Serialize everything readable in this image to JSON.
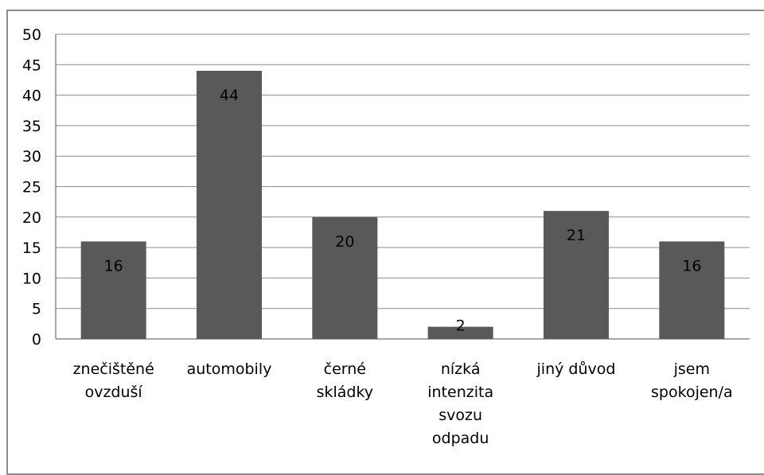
{
  "chart_data": {
    "type": "bar",
    "categories": [
      [
        "znečištěné",
        "ovzduší"
      ],
      [
        "automobily"
      ],
      [
        "černé",
        "skládky"
      ],
      [
        "nízká",
        "intenzita",
        "svozu",
        "odpadu"
      ],
      [
        "jiný důvod"
      ],
      [
        "jsem",
        "spokojen/a"
      ]
    ],
    "values": [
      16,
      44,
      20,
      2,
      21,
      16
    ],
    "ylim": [
      0,
      50
    ],
    "ytick_step": 5,
    "grid": true,
    "legend": "none",
    "bar_color": "#595959",
    "grid_color": "#8c8c8c",
    "title": "",
    "xlabel": "",
    "ylabel": ""
  }
}
